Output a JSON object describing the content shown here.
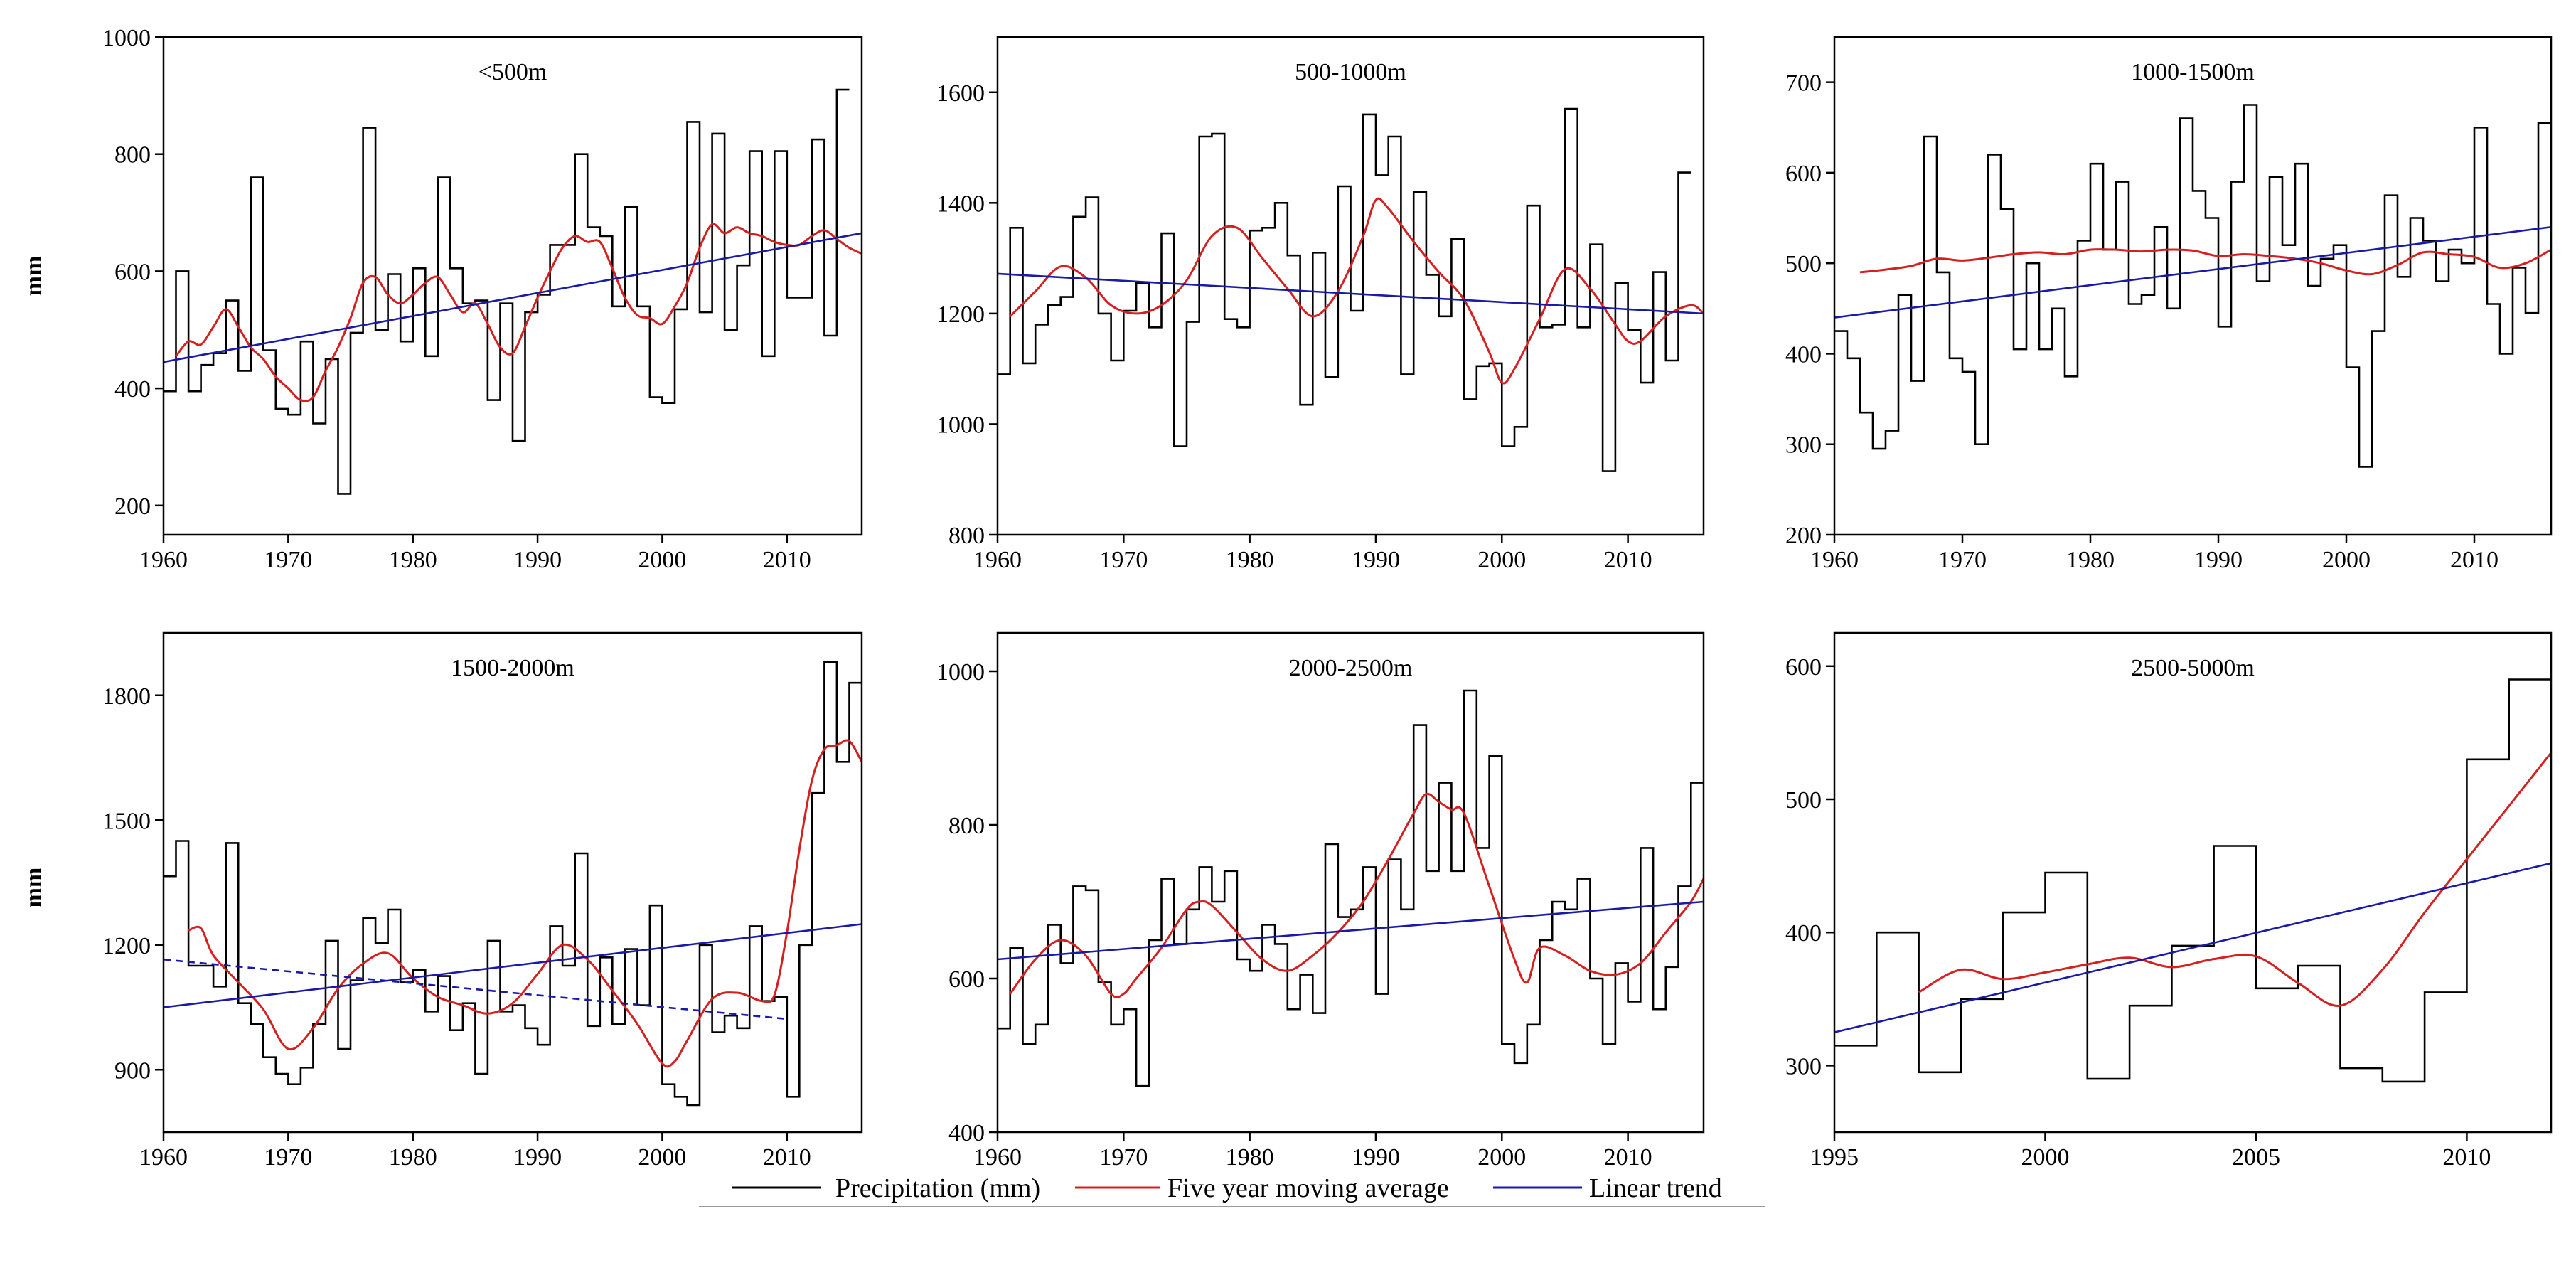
{
  "legend": {
    "precip_label": "Precipitation (mm)",
    "moving_avg_label": "Five year moving average",
    "trend_label": "Linear trend",
    "colors": {
      "precip": "#000000",
      "moving_avg": "#d62020",
      "trend": "#1a1aa8"
    }
  },
  "y_axis_label": "mm",
  "chart_data": [
    {
      "type": "line",
      "title": "<500m",
      "xlim": [
        1960,
        2016
      ],
      "ylim": [
        150,
        1000
      ],
      "xticks": [
        1960,
        1970,
        1980,
        1990,
        2000,
        2010
      ],
      "yticks": [
        200,
        400,
        600,
        800,
        1000
      ],
      "x_start": 1960,
      "precip": [
        395,
        600,
        395,
        440,
        460,
        550,
        430,
        760,
        465,
        365,
        355,
        480,
        340,
        450,
        220,
        495,
        845,
        500,
        595,
        480,
        605,
        455,
        760,
        605,
        545,
        550,
        380,
        545,
        310,
        530,
        560,
        645,
        645,
        800,
        675,
        660,
        540,
        710,
        540,
        385,
        375,
        535,
        855,
        530,
        835,
        500,
        610,
        805,
        455,
        805,
        555,
        555,
        825,
        490,
        910
      ],
      "moving_avg": {
        "x": [
          1961,
          1962,
          1963,
          1964,
          1965,
          1966,
          1967,
          1968,
          1969,
          1970,
          1971,
          1972,
          1973,
          1974,
          1975,
          1976,
          1977,
          1978,
          1979,
          1980,
          1981,
          1982,
          1983,
          1984,
          1985,
          1986,
          1987,
          1988,
          1989,
          1990,
          1991,
          1992,
          1993,
          1994,
          1995,
          1996,
          1997,
          1998,
          1999,
          2000,
          2001,
          2002,
          2003,
          2004,
          2005,
          2006,
          2007,
          2008,
          2009,
          2010,
          2011,
          2012,
          2013,
          2014,
          2015,
          2016
        ],
        "y": [
          455,
          480,
          475,
          505,
          535,
          505,
          470,
          450,
          420,
          400,
          380,
          385,
          430,
          470,
          520,
          580,
          590,
          560,
          545,
          560,
          580,
          590,
          560,
          530,
          545,
          510,
          470,
          460,
          505,
          555,
          600,
          640,
          660,
          650,
          650,
          605,
          555,
          525,
          520,
          510,
          540,
          580,
          640,
          680,
          665,
          675,
          665,
          660,
          650,
          645,
          645,
          660,
          670,
          655,
          640,
          630
        ]
      },
      "trend": [
        [
          1960,
          445
        ],
        [
          2016,
          665
        ]
      ]
    },
    {
      "type": "line",
      "title": "500-1000m",
      "xlim": [
        1960,
        2016
      ],
      "ylim": [
        800,
        1700
      ],
      "xticks": [
        1960,
        1970,
        1980,
        1990,
        2000,
        2010
      ],
      "yticks": [
        800,
        1000,
        1200,
        1400,
        1600
      ],
      "x_start": 1960,
      "precip": [
        1090,
        1355,
        1110,
        1180,
        1215,
        1230,
        1375,
        1410,
        1200,
        1115,
        1205,
        1255,
        1175,
        1345,
        960,
        1185,
        1520,
        1525,
        1190,
        1175,
        1350,
        1355,
        1400,
        1305,
        1035,
        1310,
        1085,
        1430,
        1205,
        1560,
        1450,
        1520,
        1090,
        1420,
        1270,
        1195,
        1335,
        1045,
        1105,
        1110,
        960,
        995,
        1395,
        1175,
        1180,
        1570,
        1175,
        1325,
        915,
        1255,
        1170,
        1075,
        1275,
        1115,
        1455
      ],
      "moving_avg": {
        "x": [
          1961,
          1963,
          1965,
          1967,
          1969,
          1971,
          1973,
          1975,
          1977,
          1979,
          1981,
          1983,
          1985,
          1987,
          1989,
          1990,
          1991,
          1993,
          1995,
          1997,
          1999,
          2000,
          2001,
          2003,
          2005,
          2007,
          2009,
          2010,
          2011,
          2013,
          2015,
          2016
        ],
        "y": [
          1195,
          1240,
          1285,
          1265,
          1215,
          1200,
          1215,
          1260,
          1340,
          1355,
          1300,
          1245,
          1195,
          1240,
          1340,
          1405,
          1390,
          1330,
          1275,
          1225,
          1130,
          1075,
          1100,
          1190,
          1280,
          1245,
          1180,
          1150,
          1150,
          1195,
          1215,
          1200
        ]
      },
      "trend": [
        [
          1960,
          1272
        ],
        [
          2016,
          1200
        ]
      ]
    },
    {
      "type": "line",
      "title": "1000-1500m",
      "xlim": [
        1960,
        2016
      ],
      "ylim": [
        200,
        750
      ],
      "xticks": [
        1960,
        1970,
        1980,
        1990,
        2000,
        2010
      ],
      "yticks": [
        200,
        300,
        400,
        500,
        600,
        700
      ],
      "x_start": 1960,
      "precip": [
        425,
        395,
        335,
        295,
        315,
        465,
        370,
        640,
        490,
        395,
        380,
        300,
        620,
        560,
        405,
        500,
        405,
        450,
        375,
        525,
        610,
        515,
        590,
        455,
        465,
        540,
        450,
        660,
        580,
        550,
        430,
        590,
        675,
        480,
        595,
        520,
        610,
        475,
        505,
        520,
        385,
        275,
        425,
        575,
        485,
        550,
        525,
        480,
        515,
        500,
        650,
        455,
        400,
        495,
        445,
        655
      ],
      "moving_avg": {
        "x": [
          1962,
          1964,
          1966,
          1968,
          1970,
          1972,
          1974,
          1976,
          1978,
          1980,
          1982,
          1984,
          1986,
          1988,
          1990,
          1992,
          1994,
          1996,
          1998,
          2000,
          2002,
          2004,
          2006,
          2008,
          2010,
          2012,
          2014,
          2016
        ],
        "y": [
          490,
          493,
          497,
          505,
          503,
          506,
          510,
          512,
          510,
          515,
          515,
          513,
          515,
          514,
          508,
          510,
          508,
          505,
          500,
          492,
          488,
          498,
          512,
          510,
          507,
          495,
          500,
          515
        ]
      },
      "trend": [
        [
          1960,
          440
        ],
        [
          2016,
          540
        ]
      ]
    },
    {
      "type": "line",
      "title": "1500-2000m",
      "xlim": [
        1960,
        2016
      ],
      "ylim": [
        750,
        1950
      ],
      "xticks": [
        1960,
        1970,
        1980,
        1990,
        2000,
        2010
      ],
      "yticks": [
        900,
        1200,
        1500,
        1800
      ],
      "x_start": 1960,
      "precip": [
        1365,
        1450,
        1150,
        1150,
        1100,
        1445,
        1060,
        1010,
        930,
        890,
        865,
        905,
        1010,
        1210,
        950,
        1115,
        1265,
        1205,
        1285,
        1110,
        1140,
        1040,
        1125,
        995,
        1060,
        890,
        1210,
        1040,
        1055,
        1000,
        960,
        1245,
        1150,
        1420,
        1005,
        1170,
        1010,
        1190,
        1055,
        1295,
        865,
        835,
        815,
        1200,
        990,
        1030,
        1000,
        1245,
        1065,
        1075,
        835,
        1200,
        1565,
        1880,
        1640,
        1830
      ],
      "moving_avg": {
        "x": [
          1962,
          1963,
          1964,
          1966,
          1968,
          1970,
          1972,
          1974,
          1976,
          1978,
          1980,
          1982,
          1984,
          1986,
          1988,
          1990,
          1992,
          1994,
          1996,
          1998,
          2000,
          2001,
          2002,
          2004,
          2006,
          2008,
          2009,
          2010,
          2011,
          2012,
          2013,
          2014,
          2015,
          2016
        ],
        "y": [
          1235,
          1240,
          1175,
          1110,
          1045,
          950,
          1000,
          1095,
          1155,
          1180,
          1120,
          1075,
          1055,
          1035,
          1060,
          1130,
          1200,
          1165,
          1090,
          1010,
          915,
          920,
          970,
          1070,
          1085,
          1065,
          1080,
          1230,
          1430,
          1595,
          1670,
          1680,
          1690,
          1640
        ]
      },
      "trend": [
        [
          1960,
          1050
        ],
        [
          2016,
          1250
        ]
      ],
      "dashed_trend": [
        [
          1960,
          1165
        ],
        [
          2010,
          1022
        ]
      ]
    },
    {
      "type": "line",
      "title": "2000-2500m",
      "xlim": [
        1960,
        2016
      ],
      "ylim": [
        400,
        1050
      ],
      "xticks": [
        1960,
        1970,
        1980,
        1990,
        2000,
        2010
      ],
      "yticks": [
        400,
        600,
        800,
        1000
      ],
      "x_start": 1960,
      "precip": [
        535,
        640,
        515,
        540,
        670,
        620,
        720,
        715,
        595,
        540,
        560,
        460,
        650,
        730,
        645,
        690,
        745,
        700,
        740,
        625,
        610,
        670,
        645,
        560,
        605,
        555,
        775,
        680,
        690,
        745,
        580,
        755,
        690,
        930,
        740,
        855,
        740,
        975,
        770,
        890,
        515,
        490,
        540,
        650,
        700,
        690,
        730,
        600,
        515,
        620,
        570,
        770,
        560,
        615,
        720,
        855
      ],
      "moving_avg": {
        "x": [
          1961,
          1963,
          1965,
          1967,
          1969,
          1970,
          1971,
          1973,
          1975,
          1976,
          1977,
          1979,
          1981,
          1983,
          1985,
          1987,
          1989,
          1991,
          1993,
          1994,
          1995,
          1996,
          1997,
          1999,
          2001,
          2002,
          2003,
          2005,
          2007,
          2009,
          2011,
          2013,
          2015,
          2016
        ],
        "y": [
          580,
          625,
          650,
          630,
          580,
          580,
          600,
          640,
          690,
          700,
          695,
          660,
          625,
          610,
          630,
          660,
          700,
          755,
          815,
          840,
          830,
          820,
          815,
          720,
          625,
          595,
          640,
          630,
          610,
          605,
          620,
          660,
          700,
          730
        ]
      },
      "trend": [
        [
          1960,
          625
        ],
        [
          2016,
          700
        ]
      ]
    },
    {
      "type": "line",
      "title": "2500-5000m",
      "xlim": [
        1995,
        2012
      ],
      "ylim": [
        250,
        625
      ],
      "xticks": [
        1995,
        2000,
        2005,
        2010
      ],
      "yticks": [
        300,
        400,
        500,
        600
      ],
      "x_start": 1995,
      "precip": [
        315,
        400,
        295,
        350,
        415,
        445,
        290,
        345,
        390,
        465,
        358,
        375,
        298,
        288,
        355,
        530,
        590
      ],
      "moving_avg": {
        "x": [
          1997,
          1998,
          1999,
          2000,
          2001,
          2002,
          2003,
          2004,
          2005,
          2006,
          2007,
          2008,
          2009,
          2010,
          2011,
          2012
        ],
        "y": [
          355,
          372,
          365,
          370,
          376,
          381,
          374,
          380,
          382,
          362,
          345,
          372,
          415,
          455,
          495,
          535
        ]
      },
      "trend": [
        [
          1995,
          325
        ],
        [
          2012,
          452
        ]
      ]
    }
  ]
}
